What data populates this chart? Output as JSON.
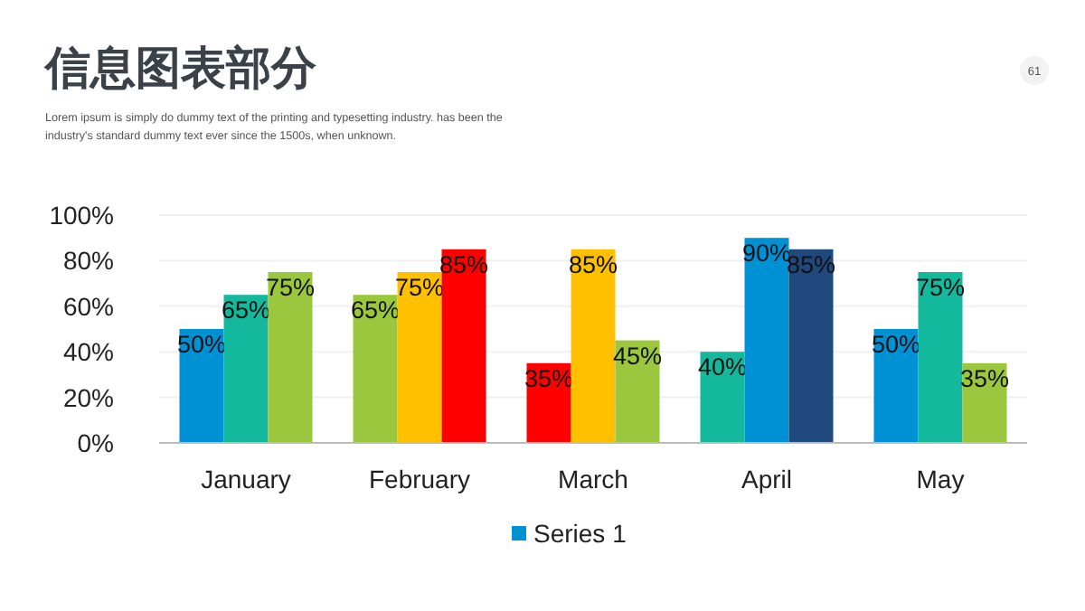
{
  "chart_data": {
    "type": "bar",
    "title": "信息图表部分",
    "subtitle": "Lorem ipsum is simply do  dummy text of the printing and typesetting industry. has been the industry's standard dummy text ever since the 1500s, when unknown.",
    "annotations": [
      "61"
    ],
    "categories": [
      "January",
      "February",
      "March",
      "April",
      "May"
    ],
    "series": [
      {
        "name": "Series 1",
        "color": "#0090d4",
        "colors": [
          "#0090d4",
          "#9bc73f",
          "#ff0000",
          "#14b89c",
          "#0090d4"
        ],
        "values": [
          50,
          65,
          35,
          40,
          50
        ],
        "value_labels": [
          "50%",
          "65%",
          "35%",
          "40%",
          "50%"
        ]
      },
      {
        "colors": [
          "#14b89c",
          "#ffc000",
          "#ffc000",
          "#0090d4",
          "#14b89c"
        ],
        "values": [
          65,
          75,
          85,
          90,
          75
        ],
        "value_labels": [
          "65%",
          "75%",
          "85%",
          "90%",
          "75%"
        ]
      },
      {
        "colors": [
          "#9bc73f",
          "#ff0000",
          "#9bc73f",
          "#1f497d",
          "#9bc73f"
        ],
        "values": [
          75,
          85,
          45,
          85,
          35
        ],
        "value_labels": [
          "75%",
          "85%",
          "45%",
          "85%",
          "35%"
        ]
      }
    ],
    "ylim": [
      0,
      100
    ],
    "yticks": [
      {
        "value": 0,
        "label": "0%"
      },
      {
        "value": 20,
        "label": "20%"
      },
      {
        "value": 40,
        "label": "40%"
      },
      {
        "value": 60,
        "label": "60%"
      },
      {
        "value": 80,
        "label": "80%"
      },
      {
        "value": 100,
        "label": "100%"
      }
    ],
    "grid": "y",
    "legend": "bottom"
  }
}
